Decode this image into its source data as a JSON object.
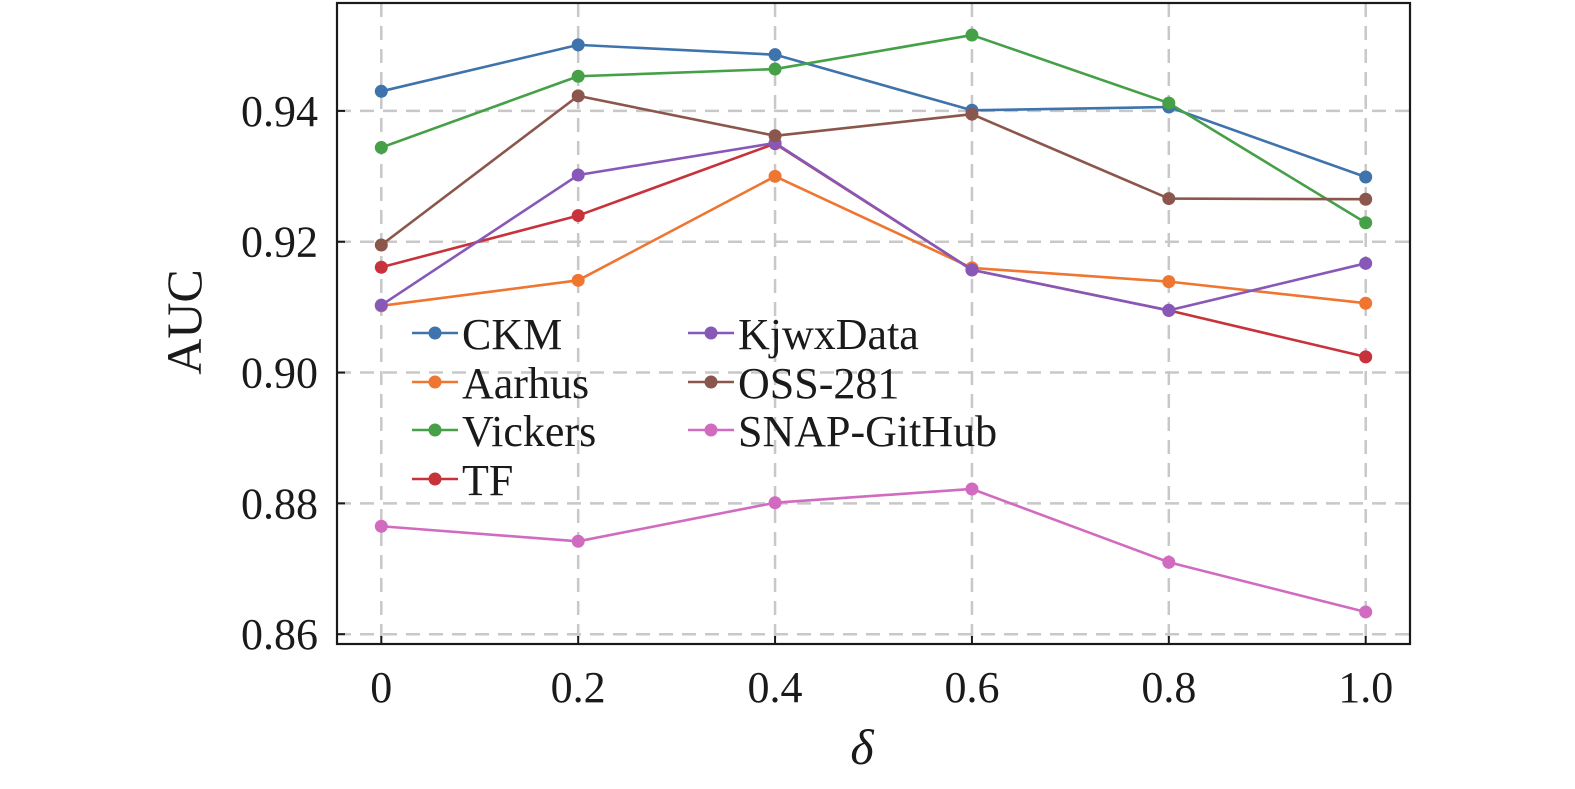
{
  "chart_data": {
    "type": "line",
    "xlabel": "δ",
    "ylabel": "AUC",
    "x": [
      0,
      0.2,
      0.4,
      0.6,
      0.8,
      1.0
    ],
    "x_tick_labels": [
      "0",
      "0.2",
      "0.4",
      "0.6",
      "0.8",
      "1.0"
    ],
    "xlim": [
      -0.045,
      1.045
    ],
    "ylim": [
      0.8585,
      0.9565
    ],
    "y_ticks": [
      0.86,
      0.88,
      0.9,
      0.92,
      0.94
    ],
    "y_tick_labels": [
      "0.86",
      "0.88",
      "0.90",
      "0.92",
      "0.94"
    ],
    "grid": true,
    "legend_placement": "center-left",
    "series": [
      {
        "name": "CKM",
        "color": "#3f73ac",
        "values": [
          0.943,
          0.9501,
          0.9486,
          0.9401,
          0.9406,
          0.9299
        ]
      },
      {
        "name": "Aarhus",
        "color": "#ee7631",
        "values": [
          0.9102,
          0.9141,
          0.93,
          0.916,
          0.9139,
          0.9106
        ]
      },
      {
        "name": "Vickers",
        "color": "#45a047",
        "values": [
          0.9344,
          0.9453,
          0.9464,
          0.9516,
          0.9412,
          0.9229
        ]
      },
      {
        "name": "TF",
        "color": "#c8333b",
        "values": [
          0.9161,
          0.924,
          0.935,
          0.9157,
          0.9095,
          0.9024
        ]
      },
      {
        "name": "KjwxData",
        "color": "#8758b7",
        "values": [
          0.9103,
          0.9302,
          0.9351,
          0.9157,
          0.9095,
          0.9167
        ]
      },
      {
        "name": "OSS-281",
        "color": "#8b564c",
        "values": [
          0.9195,
          0.9423,
          0.9362,
          0.9395,
          0.9266,
          0.9265
        ]
      },
      {
        "name": "SNAP-GitHub",
        "color": "#d16bc0",
        "values": [
          0.8765,
          0.8742,
          0.8801,
          0.8822,
          0.871,
          0.8634
        ]
      }
    ],
    "legend_columns": [
      [
        "CKM",
        "Aarhus",
        "Vickers",
        "TF"
      ],
      [
        "KjwxData",
        "OSS-281",
        "SNAP-GitHub"
      ]
    ]
  }
}
